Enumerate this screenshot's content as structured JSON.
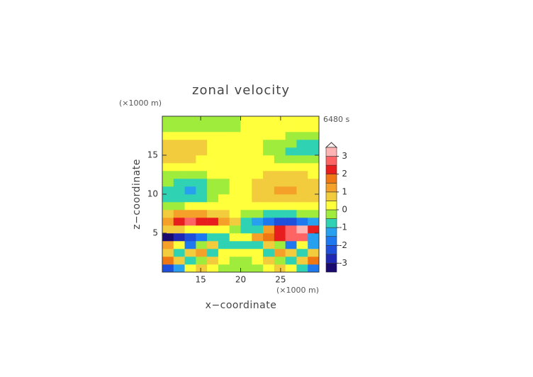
{
  "chart_data": {
    "type": "contour",
    "title": "zonal velocity",
    "time_label": "6480 s",
    "x_label": "x−coordinate",
    "y_label": "z−coordinate",
    "x_unit": "(×1000 m)",
    "y_unit": "(×1000 m)",
    "xlim": [
      10.2,
      29.8
    ],
    "ylim": [
      0,
      20
    ],
    "xticks": [
      15,
      20,
      25
    ],
    "yticks": [
      5,
      10,
      15
    ],
    "x": [
      10.9,
      12.3,
      13.7,
      15.1,
      16.5,
      17.9,
      19.3,
      20.7,
      22.1,
      23.5,
      24.9,
      26.3,
      27.7,
      29.1
    ],
    "y": [
      0.5,
      1.5,
      2.5,
      3.5,
      4.5,
      5.5,
      6.5,
      7.5,
      8.5,
      9.5,
      10.5,
      11.5,
      12.5,
      13.5,
      14.5,
      15.5,
      16.5,
      17.5,
      18.5,
      19.5
    ],
    "z": [
      [
        -2.2,
        -1.2,
        0.3,
        0.5,
        0.2,
        -0.3,
        -0.5,
        -0.5,
        -0.3,
        0.2,
        0.5,
        0.3,
        -1.0,
        -1.8
      ],
      [
        1.8,
        0.8,
        -0.6,
        -0.3,
        0.6,
        0.3,
        -0.3,
        -0.3,
        0.3,
        0.6,
        -0.4,
        -0.8,
        0.8,
        1.6
      ],
      [
        0.6,
        -0.8,
        0.8,
        1.2,
        -0.6,
        0.4,
        0.3,
        0.3,
        0.4,
        -0.6,
        1.2,
        0.8,
        -0.8,
        0.6
      ],
      [
        1.2,
        0.4,
        -1.6,
        -0.5,
        0.6,
        -0.6,
        -0.8,
        -0.8,
        -0.6,
        0.6,
        -0.5,
        -1.6,
        0.4,
        -1.4
      ],
      [
        -3.2,
        -3.0,
        -2.4,
        -1.8,
        -1.0,
        -0.6,
        0.2,
        0.4,
        1.0,
        1.8,
        2.4,
        2.6,
        2.8,
        -1.2
      ],
      [
        0.8,
        0.5,
        0.4,
        0.3,
        0.2,
        0.0,
        -0.2,
        -0.6,
        -1.0,
        1.2,
        2.2,
        2.8,
        3.2,
        2.0
      ],
      [
        1.2,
        2.0,
        2.6,
        2.4,
        2.0,
        1.4,
        0.6,
        -0.6,
        -1.4,
        -2.0,
        -2.4,
        -2.2,
        -1.8,
        -1.2
      ],
      [
        0.6,
        1.0,
        1.2,
        1.0,
        0.8,
        0.5,
        0.2,
        -0.2,
        -0.5,
        -0.8,
        -0.8,
        -0.6,
        -0.4,
        -0.3
      ],
      [
        -0.3,
        -0.2,
        0.1,
        0.2,
        0.3,
        0.3,
        0.2,
        0.2,
        0.3,
        0.3,
        0.3,
        0.2,
        0.2,
        0.2
      ],
      [
        -0.6,
        -0.8,
        -0.8,
        -0.6,
        -0.3,
        0.1,
        0.2,
        0.3,
        0.5,
        0.7,
        0.8,
        0.8,
        0.7,
        0.6
      ],
      [
        -0.6,
        -0.9,
        -1.1,
        -0.8,
        -0.5,
        -0.1,
        0.2,
        0.3,
        0.6,
        0.9,
        1.1,
        1.1,
        0.9,
        0.7
      ],
      [
        -0.5,
        -0.7,
        -0.7,
        -0.6,
        -0.4,
        -0.1,
        0.2,
        0.3,
        0.5,
        0.7,
        0.8,
        0.8,
        0.7,
        0.6
      ],
      [
        -0.3,
        -0.3,
        -0.3,
        -0.2,
        0.1,
        0.2,
        0.3,
        0.3,
        0.4,
        0.5,
        0.6,
        0.6,
        0.5,
        0.4
      ],
      [
        0.2,
        0.2,
        0.2,
        0.3,
        0.3,
        0.3,
        0.3,
        0.3,
        0.3,
        0.3,
        0.3,
        0.3,
        0.3,
        0.3
      ],
      [
        0.6,
        0.6,
        0.5,
        0.4,
        0.3,
        0.3,
        0.3,
        0.3,
        0.2,
        0.1,
        -0.1,
        -0.2,
        -0.2,
        -0.2
      ],
      [
        0.9,
        0.9,
        0.8,
        0.6,
        0.4,
        0.3,
        0.3,
        0.2,
        0.1,
        -0.1,
        -0.4,
        -0.6,
        -0.7,
        -0.7
      ],
      [
        0.9,
        0.8,
        0.7,
        0.5,
        0.4,
        0.3,
        0.3,
        0.2,
        0.1,
        -0.1,
        -0.3,
        -0.5,
        -0.6,
        -0.6
      ],
      [
        0.3,
        0.3,
        0.3,
        0.3,
        0.3,
        0.3,
        0.3,
        0.3,
        0.3,
        0.2,
        0.1,
        -0.1,
        -0.2,
        -0.2
      ],
      [
        -0.3,
        -0.3,
        -0.3,
        -0.3,
        -0.3,
        -0.3,
        -0.3,
        0.3,
        0.3,
        0.3,
        0.3,
        0.3,
        0.3,
        0.3
      ],
      [
        -0.3,
        -0.3,
        -0.3,
        -0.3,
        -0.3,
        -0.3,
        -0.3,
        0.3,
        0.3,
        0.3,
        0.3,
        0.3,
        0.3,
        0.3
      ]
    ],
    "levels": [
      -3.5,
      -3,
      -2.5,
      -2,
      -1.5,
      -1,
      -0.5,
      0,
      0.5,
      1,
      1.5,
      2,
      2.5,
      3,
      3.5
    ],
    "colors": [
      "#1a0a70",
      "#1e28b4",
      "#1e50dc",
      "#1e78f0",
      "#28a0f0",
      "#30d2b4",
      "#a0ec3c",
      "#ffff3c",
      "#f2cc3c",
      "#f5a028",
      "#f07814",
      "#e81e1e",
      "#ff6464",
      "#ffb4b4"
    ],
    "cbar_ticks": [
      -3,
      -2,
      -1,
      0,
      1,
      2,
      3
    ]
  }
}
